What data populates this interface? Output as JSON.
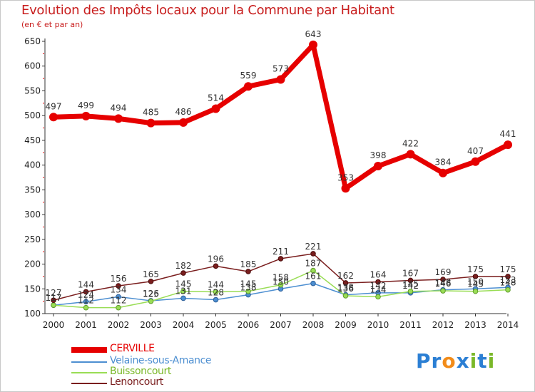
{
  "title": "Evolution des Impôts locaux pour la Commune par Habitant",
  "subtitle": "(en € et par an)",
  "logo": {
    "text": "Proxiti",
    "letters": [
      "P",
      "r",
      "o",
      "x",
      "i",
      "t",
      "i"
    ],
    "colors": [
      "#2b7fd4",
      "#2b7fd4",
      "#f28c1a",
      "#2b7fd4",
      "#7ab829",
      "#2b7fd4",
      "#7ab829"
    ]
  },
  "chart_data": {
    "type": "line",
    "x": [
      "2000",
      "2001",
      "2002",
      "2003",
      "2004",
      "2005",
      "2006",
      "2007",
      "2008",
      "2009",
      "2010",
      "2011",
      "2012",
      "2013",
      "2014"
    ],
    "ylim": [
      100,
      650
    ],
    "yticks": [
      100,
      150,
      200,
      250,
      300,
      350,
      400,
      450,
      500,
      550,
      600,
      650
    ],
    "grid": false,
    "legend_position": "bottom-left",
    "series": [
      {
        "name": "CERVILLE",
        "color": "#e60000",
        "values": [
          497,
          499,
          494,
          485,
          486,
          514,
          559,
          573,
          643,
          353,
          398,
          422,
          384,
          407,
          441
        ],
        "labels": [
          "497",
          "499",
          "494",
          "485",
          "486",
          "514",
          "559",
          "573",
          "643",
          "353",
          "398",
          "422",
          "384",
          "407",
          "441"
        ]
      },
      {
        "name": "Velaine-sous-Amance",
        "color": "#4d8fd1",
        "values": [
          117,
          124,
          134,
          126,
          131,
          128,
          138,
          150,
          161,
          138,
          142,
          142,
          148,
          150,
          153
        ],
        "labels": [
          "117",
          "124",
          "134",
          "126",
          "131",
          "128",
          "138",
          "150",
          "161",
          "138",
          "142",
          "142",
          "148",
          "150",
          "153"
        ]
      },
      {
        "name": "Buissoncourt",
        "color": "#99dd55",
        "values": [
          117,
          112,
          112,
          125,
          145,
          144,
          145,
          158,
          187,
          136,
          134,
          145,
          146,
          145,
          148
        ],
        "labels": [
          "117",
          "112",
          "112",
          "125",
          "145",
          "144",
          "145",
          "158",
          "187",
          "136",
          "134",
          "145",
          "146",
          "145",
          "148"
        ]
      },
      {
        "name": "Lenoncourt",
        "color": "#7a1e1e",
        "values": [
          127,
          144,
          156,
          165,
          182,
          196,
          185,
          211,
          221,
          162,
          164,
          167,
          169,
          175,
          175
        ],
        "labels": [
          "127",
          "144",
          "156",
          "165",
          "182",
          "196",
          "185",
          "211",
          "221",
          "162",
          "164",
          "167",
          "169",
          "175",
          "175"
        ]
      }
    ]
  }
}
